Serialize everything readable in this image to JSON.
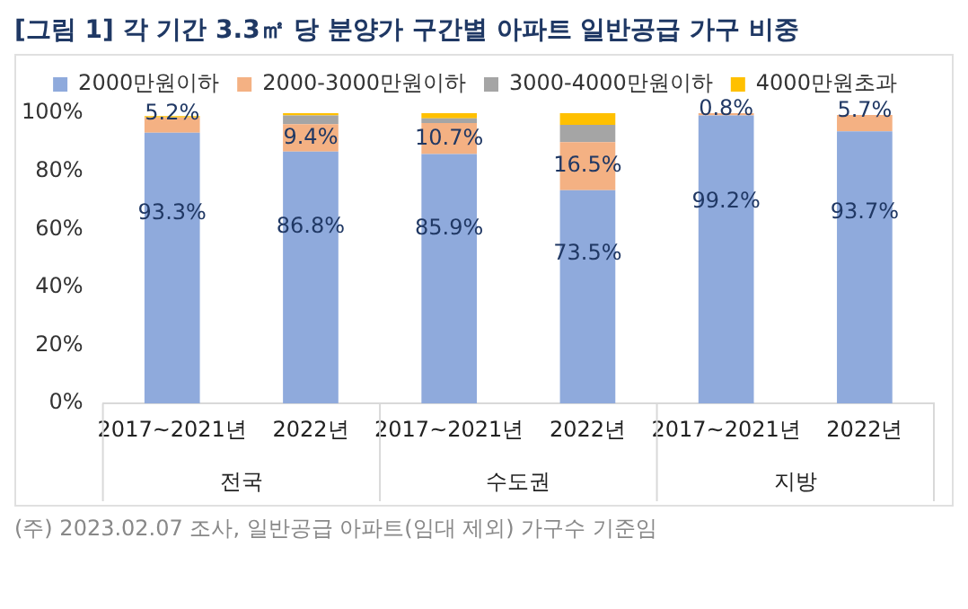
{
  "chart_data": {
    "type": "bar",
    "title": "[그림 1] 각 기간 3.3㎡ 당 분양가 구간별 아파트 일반공급 가구 비중",
    "stacked": true,
    "legend": "top",
    "grid": false,
    "categories": [
      "2017~2021년",
      "2022년",
      "2017~2021년",
      "2022년",
      "2017~2021년",
      "2022년"
    ],
    "series": [
      {
        "name": "2000만원이하",
        "color": "#8faadc",
        "values": [
          93.3,
          86.8,
          85.9,
          73.5,
          99.2,
          93.7
        ],
        "value_labels": [
          "93.3%",
          "86.8%",
          "85.9%",
          "73.5%",
          "99.2%",
          "93.7%"
        ]
      },
      {
        "name": "2000-3000만원이하",
        "color": "#f4b183",
        "values": [
          5.2,
          9.4,
          10.7,
          16.5,
          0.8,
          5.7
        ],
        "value_labels": [
          "5.2%",
          "9.4%",
          "10.7%",
          "16.5%",
          "0.8%",
          "5.7%"
        ]
      },
      {
        "name": "3000-4000만원이하",
        "color": "#a5a5a5",
        "values": [
          null,
          3.0,
          1.6,
          6.0,
          0,
          null
        ]
      },
      {
        "name": "4000만원초과",
        "color": "#ffc000",
        "values": [
          0.5,
          0.8,
          1.8,
          4.0,
          0,
          0
        ]
      }
    ],
    "ylim": [
      0,
      100
    ],
    "yticks": [
      {
        "value": 0,
        "label": "0%"
      },
      {
        "value": 20,
        "label": "20%"
      },
      {
        "value": 40,
        "label": "40%"
      },
      {
        "value": 60,
        "label": "60%"
      },
      {
        "value": 80,
        "label": "80%"
      },
      {
        "value": 100,
        "label": "100%"
      }
    ],
    "annotations": [
      "전국",
      "수도권",
      "지방",
      "(주) 2023.02.07 조사, 일반공급 아파트(임대 제외) 가구수 기준임"
    ]
  }
}
